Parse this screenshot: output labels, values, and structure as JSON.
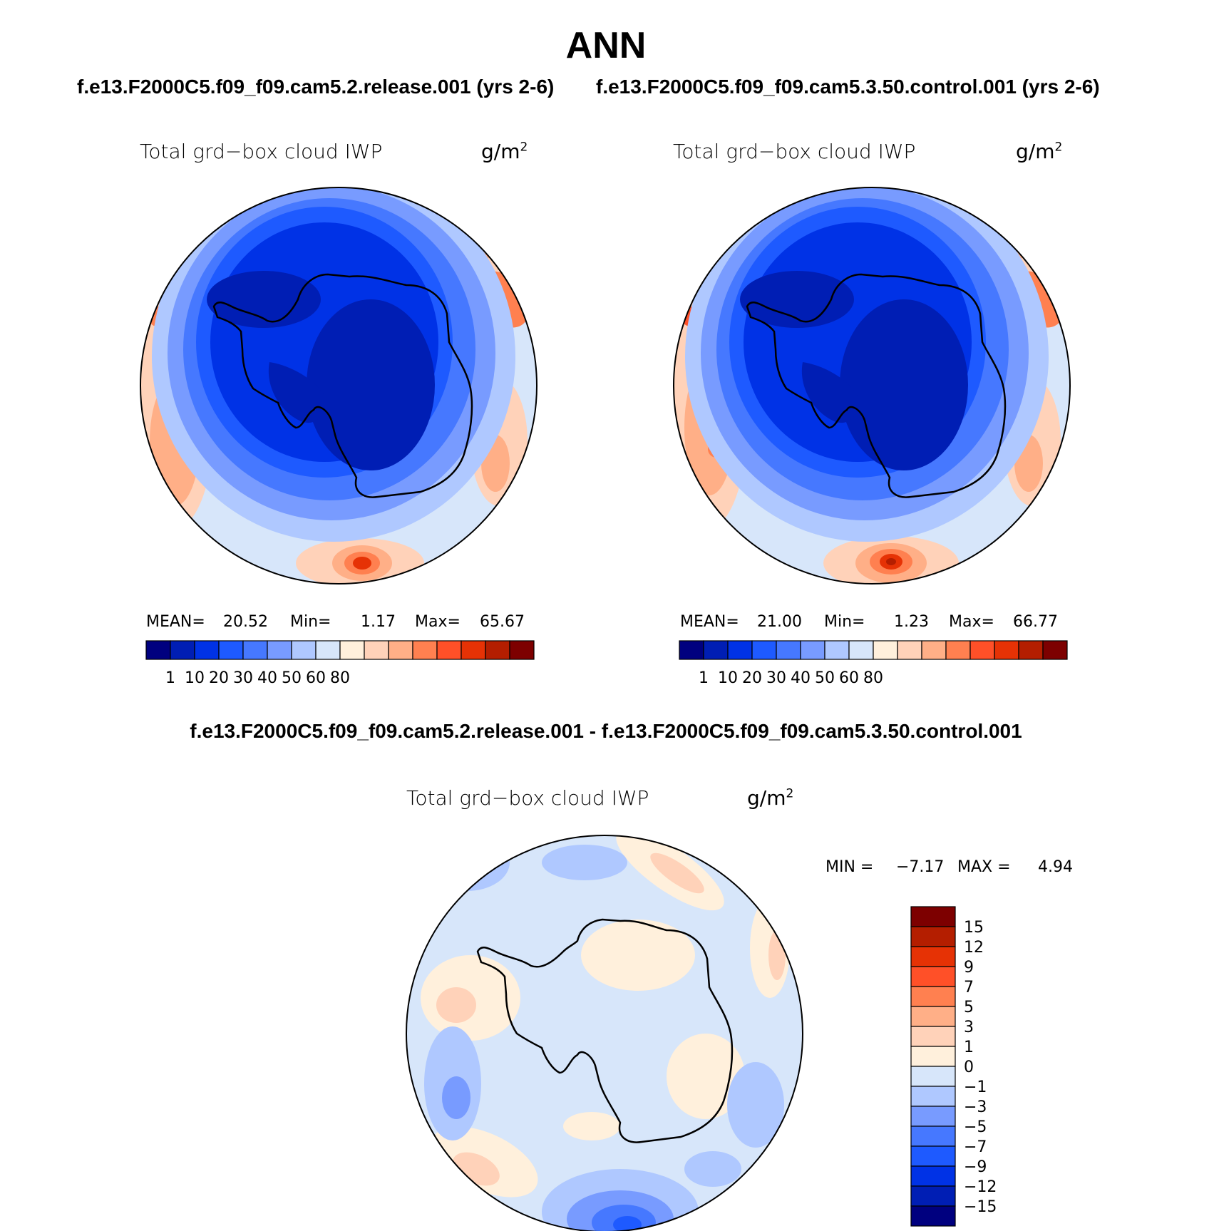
{
  "title": "ANN",
  "panels": [
    {
      "case_title": "f.e13.F2000C5.f09_f09.cam5.2.release.001 (yrs 2-6)",
      "variable": "Total grd−box cloud IWP",
      "units": "g/m",
      "units_exp": "2",
      "stats": {
        "mean_label": "MEAN=",
        "mean": "20.52",
        "min_label": "Min=",
        "min": "1.17",
        "max_label": "Max=",
        "max": "65.67"
      }
    },
    {
      "case_title": "f.e13.F2000C5.f09_f09.cam5.3.50.control.001 (yrs 2-6)",
      "variable": "Total grd−box cloud IWP",
      "units": "g/m",
      "units_exp": "2",
      "stats": {
        "mean_label": "MEAN=",
        "mean": "21.00",
        "min_label": "Min=",
        "min": "1.23",
        "max_label": "Max=",
        "max": "66.77"
      }
    }
  ],
  "abs_colorbar": {
    "colors": [
      "#00007f",
      "#001eb4",
      "#0032e6",
      "#1e5aff",
      "#4678ff",
      "#789bff",
      "#afc8ff",
      "#d7e6fa",
      "#fff0dc",
      "#ffd2b9",
      "#ffaf87",
      "#ff8050",
      "#ff5028",
      "#e63205",
      "#b41e00",
      "#7d0000"
    ],
    "tick_labels": [
      "1",
      "10",
      "20",
      "30",
      "40",
      "50",
      "60",
      "80"
    ]
  },
  "difference": {
    "title": "f.e13.F2000C5.f09_f09.cam5.2.release.001 - f.e13.F2000C5.f09_f09.cam5.3.50.control.001",
    "variable": "Total grd−box cloud IWP",
    "units": "g/m",
    "units_exp": "2",
    "min_label": "MIN =",
    "min": "−7.17",
    "max_label": "MAX =",
    "max": "4.94"
  },
  "diff_colorbar": {
    "colors_top_to_bottom": [
      "#7d0000",
      "#b41e00",
      "#e63205",
      "#ff5028",
      "#ff8050",
      "#ffaf87",
      "#ffd2b9",
      "#fff0dc",
      "#d7e6fa",
      "#afc8ff",
      "#789bff",
      "#4678ff",
      "#1e5aff",
      "#0032e6",
      "#001eb4",
      "#00007f"
    ],
    "tick_labels": [
      "15",
      "12",
      "9",
      "7",
      "5",
      "3",
      "1",
      "0",
      "−1",
      "−3",
      "−5",
      "−7",
      "−9",
      "−12",
      "−15"
    ]
  }
}
